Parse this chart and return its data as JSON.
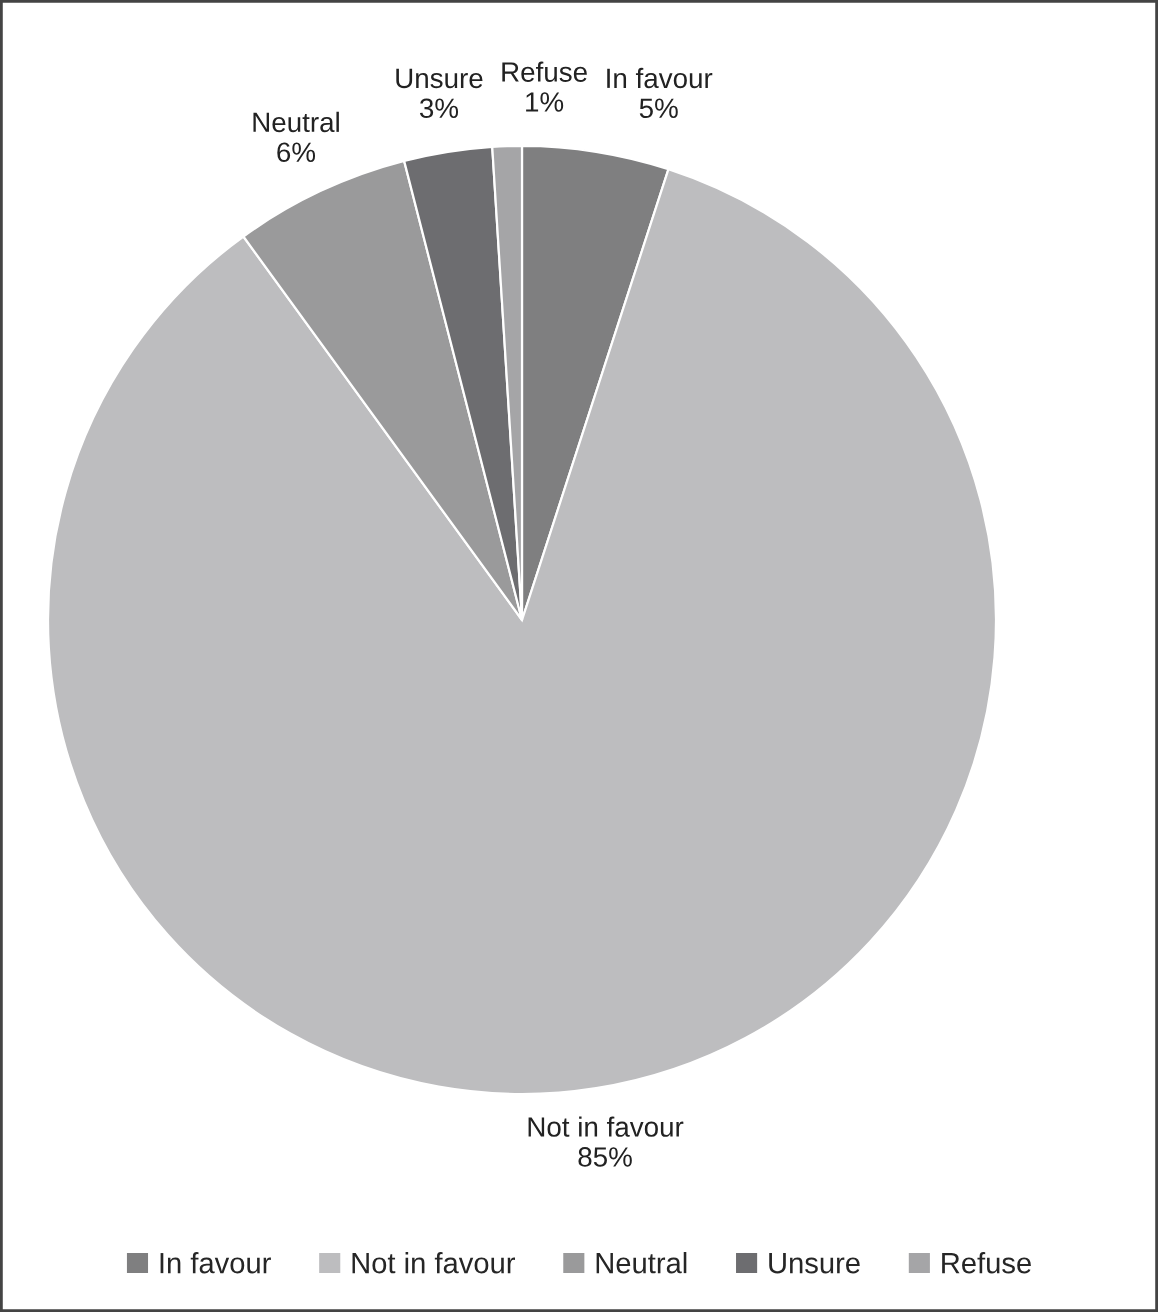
{
  "chart_data": {
    "type": "pie",
    "categories": [
      "In favour",
      "Not in favour",
      "Neutral",
      "Unsure",
      "Refuse"
    ],
    "values": [
      5,
      85,
      6,
      3,
      1
    ],
    "value_labels": [
      "5%",
      "85%",
      "6%",
      "3%",
      "1%"
    ],
    "colors": [
      "#7f7f80",
      "#bdbdbf",
      "#9a9a9b",
      "#6d6d70",
      "#a5a5a7"
    ],
    "legend": "bottom"
  }
}
